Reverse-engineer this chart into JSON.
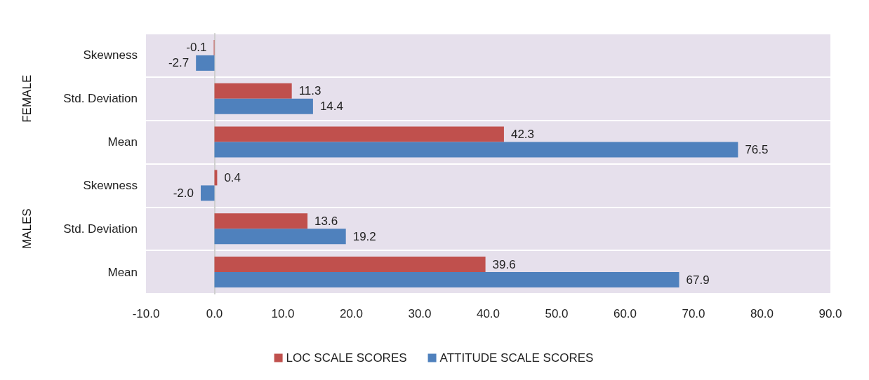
{
  "chart_data": {
    "type": "bar",
    "orientation": "horizontal",
    "categories": [
      "Skewness",
      "Std. Deviation",
      "Mean",
      "Skewness",
      "Std. Deviation",
      "Mean"
    ],
    "annotations": [
      "FEMALE",
      "MALES"
    ],
    "series": [
      {
        "name": "LOC SCALE SCORES",
        "color": "#c0504d",
        "values": [
          -0.1,
          11.3,
          42.3,
          0.4,
          13.6,
          39.6
        ],
        "value_labels": [
          "-0.1",
          "11.3",
          "42.3",
          "0.4",
          "13.6",
          "39.6"
        ]
      },
      {
        "name": "ATTITUDE SCALE SCORES",
        "color": "#4f81bd",
        "values": [
          -2.7,
          14.4,
          76.5,
          -2.0,
          19.2,
          67.9
        ],
        "value_labels": [
          "-2.7",
          "14.4",
          "76.5",
          "-2.0",
          "19.2",
          "67.9"
        ]
      }
    ],
    "xlim": [
      -10,
      90
    ],
    "xticks": [
      {
        "value": -10,
        "label": "-10.0"
      },
      {
        "value": 0,
        "label": "0.0"
      },
      {
        "value": 10,
        "label": "10.0"
      },
      {
        "value": 20,
        "label": "20.0"
      },
      {
        "value": 30,
        "label": "30.0"
      },
      {
        "value": 40,
        "label": "40.0"
      },
      {
        "value": 50,
        "label": "50.0"
      },
      {
        "value": 60,
        "label": "60.0"
      },
      {
        "value": 70,
        "label": "70.0"
      },
      {
        "value": 80,
        "label": "80.0"
      },
      {
        "value": 90,
        "label": "90.0"
      }
    ],
    "grid": "y",
    "legend": "bottom"
  }
}
